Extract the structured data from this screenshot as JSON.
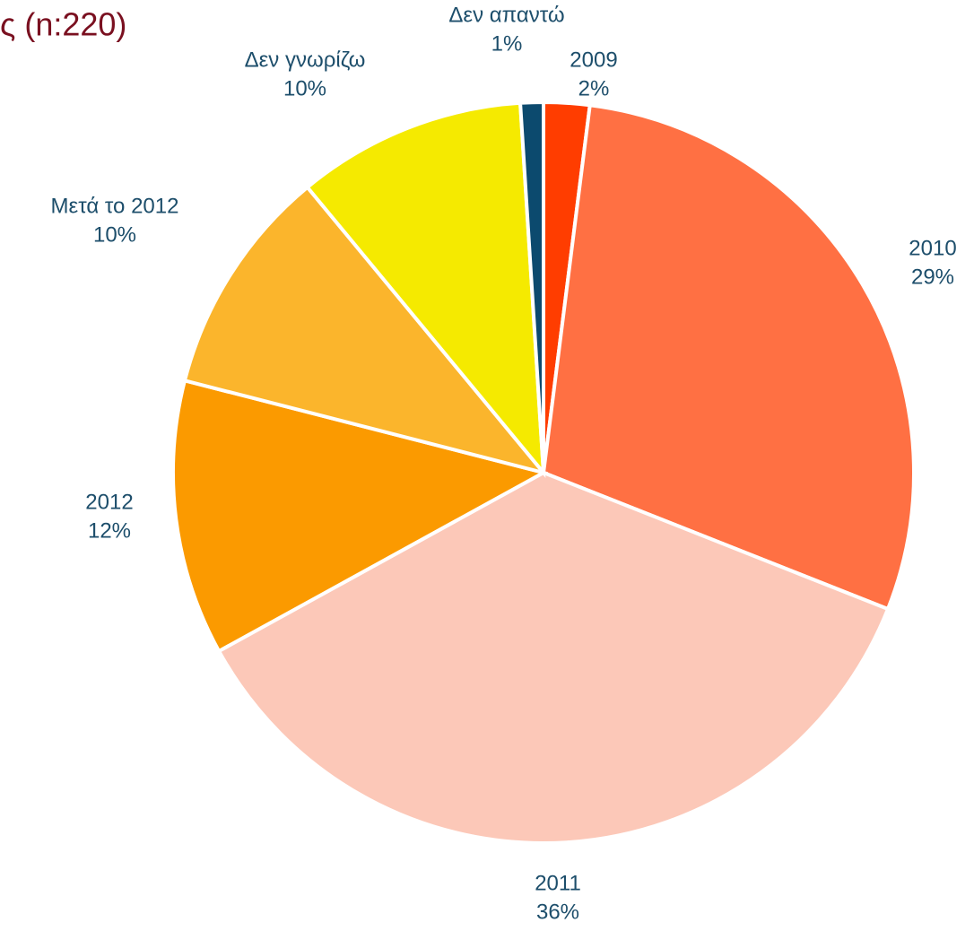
{
  "chart_data": {
    "type": "pie",
    "title": "ς (n:220)",
    "categories": [
      "2009",
      "2010",
      "2011",
      "2012",
      "Μετά το 2012",
      "Δεν γνωρίζω",
      "Δεν απαντώ"
    ],
    "values": [
      2,
      29,
      36,
      12,
      10,
      10,
      1
    ],
    "value_labels": [
      "2%",
      "29%",
      "36%",
      "12%",
      "10%",
      "10%",
      "1%"
    ],
    "colors": [
      "#ff3d00",
      "#ff7043",
      "#fcc8b8",
      "#fb9a00",
      "#fbb52c",
      "#f5ea00",
      "#0c4a6e"
    ]
  }
}
